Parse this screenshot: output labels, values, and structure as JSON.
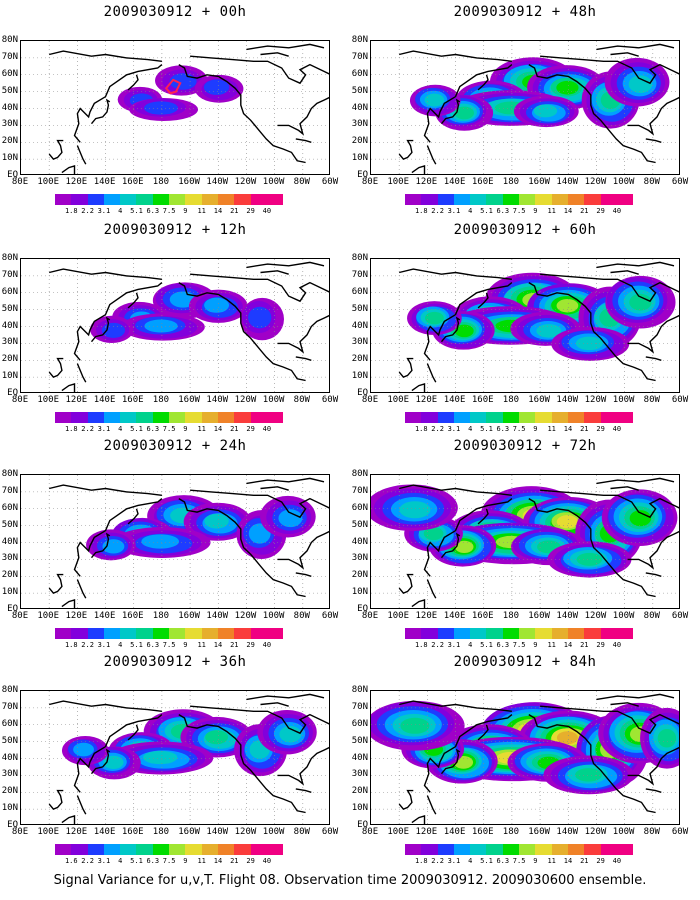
{
  "chart_data": {
    "type": "heatmap",
    "panels": [
      {
        "title": "2009030912 + 00h",
        "intensity": 0.1
      },
      {
        "title": "2009030912 + 48h",
        "intensity": 0.55
      },
      {
        "title": "2009030912 + 12h",
        "intensity": 0.25
      },
      {
        "title": "2009030912 + 60h",
        "intensity": 0.65
      },
      {
        "title": "2009030912 + 24h",
        "intensity": 0.38
      },
      {
        "title": "2009030912 + 72h",
        "intensity": 0.75
      },
      {
        "title": "2009030912 + 36h",
        "intensity": 0.45
      },
      {
        "title": "2009030912 + 84h",
        "intensity": 0.85
      }
    ],
    "y_ticks": [
      "80N",
      "70N",
      "60N",
      "50N",
      "40N",
      "30N",
      "20N",
      "10N",
      "EQ"
    ],
    "x_ticks": [
      "80E",
      "100E",
      "120E",
      "140E",
      "160E",
      "180",
      "160W",
      "140W",
      "120W",
      "100W",
      "80W",
      "60W"
    ],
    "colorbar_levels": [
      "1.8",
      "2.2",
      "3.1",
      "4",
      "5.1",
      "6.3",
      "7.5",
      "9",
      "11",
      "14",
      "21",
      "29",
      "40"
    ],
    "colorbar_levels_alt": [
      "1.6",
      "2.2",
      "3.1",
      "4",
      "5.1",
      "6.3",
      "7.5",
      "9",
      "11",
      "14",
      "21",
      "29",
      "40"
    ],
    "colorbar_colors": [
      "#a000c8",
      "#8200dc",
      "#1e3cff",
      "#00a0ff",
      "#00c8c8",
      "#00d28c",
      "#00dc00",
      "#a0e632",
      "#e6dc32",
      "#e6af2d",
      "#f08228",
      "#fa3c3c",
      "#f00082"
    ],
    "footer": "Signal Variance for u,v,T. Flight 08. Observation time 2009030912. 2009030600 ensemble."
  }
}
